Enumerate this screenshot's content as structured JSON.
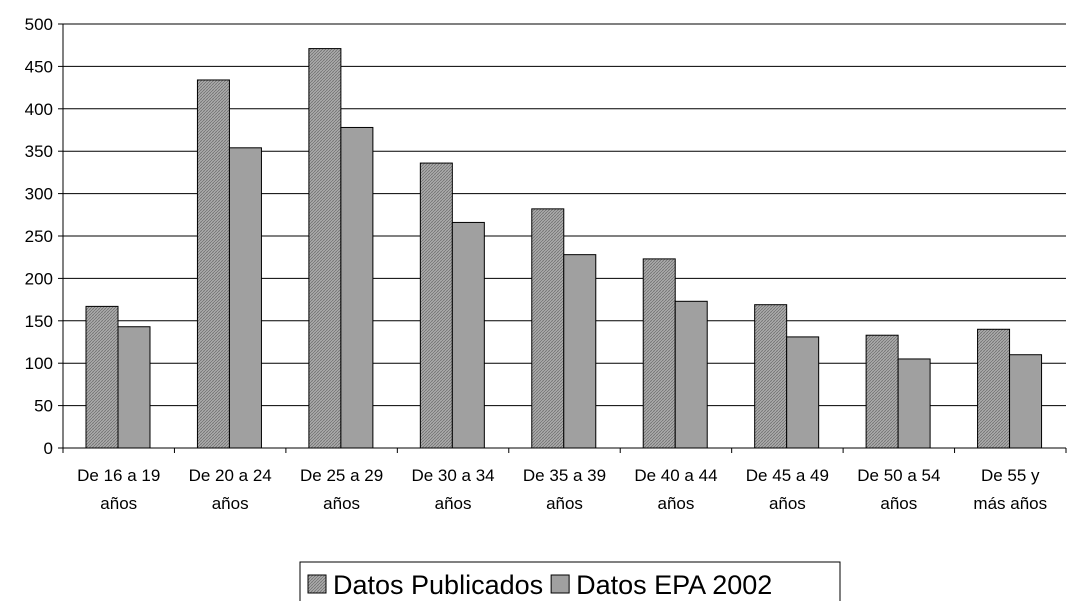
{
  "chart_data": {
    "type": "bar",
    "title": "",
    "xlabel": "",
    "ylabel": "",
    "ylim": [
      0,
      500
    ],
    "yticks": [
      0,
      50,
      100,
      150,
      200,
      250,
      300,
      350,
      400,
      450,
      500
    ],
    "grid": true,
    "legend_position": "bottom",
    "categories": [
      [
        "De 16 a 19",
        "años"
      ],
      [
        "De 20 a 24",
        "años"
      ],
      [
        "De 25 a 29",
        "años"
      ],
      [
        "De 30 a 34",
        "años"
      ],
      [
        "De 35 a 39",
        "años"
      ],
      [
        "De 40 a 44",
        "años"
      ],
      [
        "De 45 a 49",
        "años"
      ],
      [
        "De 50 a 54",
        "años"
      ],
      [
        "De 55 y",
        "más años"
      ]
    ],
    "series": [
      {
        "name": "Datos Publicados",
        "color": "#a6a6a6",
        "pattern": "crosshatch",
        "values": [
          167,
          434,
          471,
          336,
          282,
          223,
          169,
          133,
          140
        ]
      },
      {
        "name": "Datos EPA 2002",
        "color": "#a0a0a0",
        "pattern": "solid",
        "values": [
          143,
          354,
          378,
          266,
          228,
          173,
          131,
          105,
          110
        ]
      }
    ]
  }
}
